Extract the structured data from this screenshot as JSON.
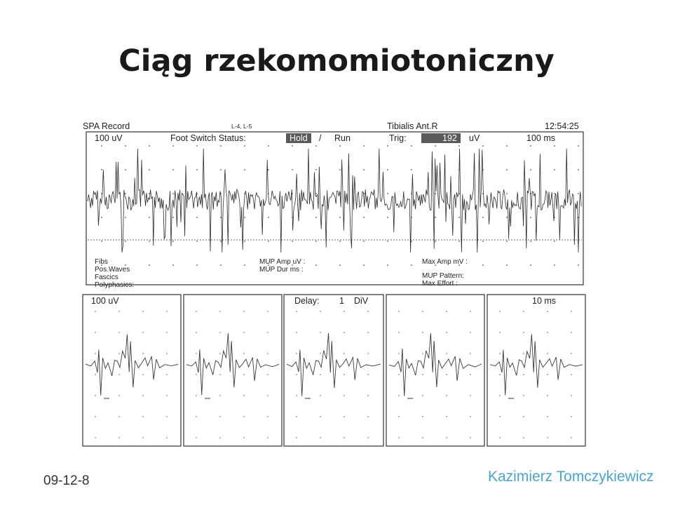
{
  "slide": {
    "title": "Ciąg rzekomomiotoniczny",
    "date": "09-12-8",
    "author": "Kazimierz Tomczykiewicz"
  },
  "emg": {
    "record_type": "SPA Record",
    "level": "L-4, L-5",
    "muscle": "Tibialis Ant.R",
    "time": "12:54:25",
    "top_panel": {
      "sensitivity": "100 uV",
      "foot_switch_label": "Foot Switch Status:",
      "hold_label": "Hold",
      "slash": "/",
      "run_label": "Run",
      "trig_label": "Trig:",
      "trig_value": "192",
      "trig_unit": "uV",
      "sweep": "100 ms",
      "stats_left": [
        "Fibs",
        "Pos.Waves",
        "Fascics",
        "Polyphasics:"
      ],
      "stats_mid": [
        "MUP Amp uV :",
        "MUP Dur ms :"
      ],
      "stats_right": [
        "Max Amp mV :",
        "MUP Pattern:",
        "Max Effort :"
      ]
    },
    "bottom_panel": {
      "sensitivity": "100 uV",
      "delay_label": "Delay:",
      "delay_value": "1",
      "delay_unit": "DiV",
      "sweep": "10 ms"
    }
  }
}
